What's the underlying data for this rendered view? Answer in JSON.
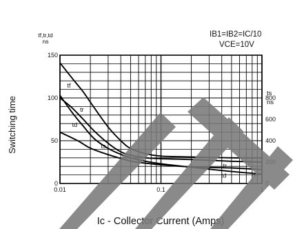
{
  "chart_data": {
    "type": "line",
    "xlabel": "Ic - Collector Current (Amps)",
    "ylabel": "Switching time",
    "ylabel_left_units": [
      "tf,tr,td",
      "ns"
    ],
    "ylabel_right_units": [
      "ts",
      "ns"
    ],
    "conditions": [
      "IB1=IB2=IC/10",
      "VCE=10V"
    ],
    "xscale": "log",
    "xlim": [
      0.01,
      1
    ],
    "x_ticks": [
      0.01,
      0.1,
      1
    ],
    "x_tick_labels": [
      "0.01",
      "0.1",
      "1"
    ],
    "ylim_left": [
      0,
      150
    ],
    "y_ticks_left": [
      0,
      50,
      100,
      150
    ],
    "y_tick_labels_left": [
      "0",
      "50",
      "100",
      "150"
    ],
    "ylim_right": [
      0,
      1200
    ],
    "y_ticks_right": [
      0,
      200,
      400,
      600,
      800
    ],
    "y_tick_labels_right": [
      "0",
      "200",
      "400",
      "600",
      "800"
    ],
    "grid": true,
    "series": [
      {
        "name": "tf",
        "axis": "left",
        "labels": [
          "tf",
          "tf"
        ],
        "x": [
          0.01,
          0.013,
          0.017,
          0.022,
          0.03,
          0.04,
          0.05,
          0.07,
          0.1,
          0.2,
          0.5,
          1.0
        ],
        "y": [
          141,
          124,
          107,
          88,
          66,
          50,
          41,
          35,
          32,
          31,
          30,
          30
        ]
      },
      {
        "name": "tr",
        "axis": "left",
        "labels": [
          "tr",
          "tr"
        ],
        "x": [
          0.01,
          0.013,
          0.017,
          0.022,
          0.03,
          0.04,
          0.05,
          0.07,
          0.1,
          0.2,
          0.5,
          1.0
        ],
        "y": [
          100,
          89,
          75,
          61,
          47,
          37,
          33,
          30,
          29,
          28,
          26,
          25
        ]
      },
      {
        "name": "td",
        "axis": "left",
        "labels": [
          "td",
          "td"
        ],
        "x": [
          0.01,
          0.013,
          0.017,
          0.022,
          0.03,
          0.04,
          0.05,
          0.07,
          0.1,
          0.2,
          0.5,
          1.0
        ],
        "y": [
          103,
          84,
          67,
          52,
          41,
          34,
          30,
          26,
          23,
          19,
          14,
          11
        ]
      },
      {
        "name": "ts",
        "axis": "right",
        "labels": [
          "ts",
          "ts"
        ],
        "x": [
          0.01,
          0.015,
          0.02,
          0.03,
          0.05,
          0.07,
          0.1,
          0.2,
          0.5,
          1.0
        ],
        "y": [
          480,
          400,
          330,
          270,
          210,
          190,
          175,
          155,
          145,
          130
        ]
      }
    ]
  }
}
